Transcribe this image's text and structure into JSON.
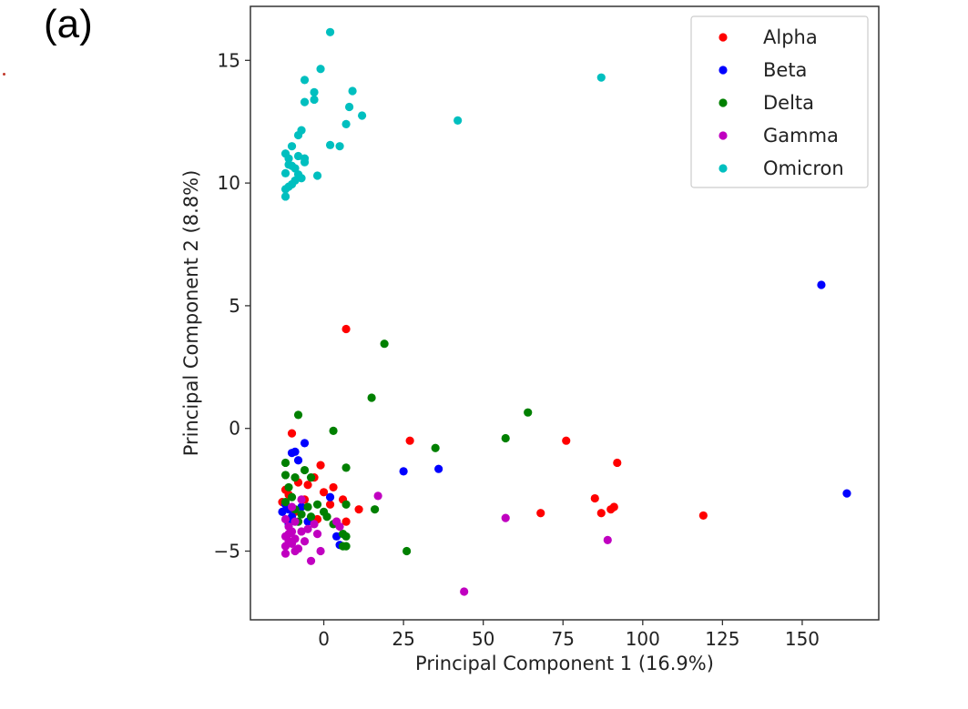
{
  "panel_label": "(a)",
  "chart_data": {
    "type": "scatter",
    "title": "",
    "xlabel": "Principal Component 1 (16.9%)",
    "ylabel": "Principal Component 2 (8.8%)",
    "xlim": [
      -23,
      174
    ],
    "ylim": [
      -7.8,
      17.2
    ],
    "xticks": [
      0,
      25,
      50,
      75,
      100,
      125,
      150
    ],
    "yticks": [
      -5,
      0,
      5,
      10,
      15
    ],
    "grid": false,
    "legend_position": "top-right",
    "series": [
      {
        "name": "Alpha",
        "color": "#ff0000",
        "points": [
          [
            7,
            4.05
          ],
          [
            27,
            -0.5
          ],
          [
            76,
            -0.5
          ],
          [
            92,
            -1.4
          ],
          [
            85,
            -2.85
          ],
          [
            91,
            -3.2
          ],
          [
            90,
            -3.3
          ],
          [
            87,
            -3.45
          ],
          [
            68,
            -3.45
          ],
          [
            119,
            -3.55
          ],
          [
            11,
            -3.3
          ],
          [
            7,
            -3.8
          ],
          [
            0,
            -2.6
          ],
          [
            3,
            -2.4
          ],
          [
            -1,
            -1.5
          ],
          [
            -3,
            -2.0
          ],
          [
            -5,
            -2.3
          ],
          [
            -10,
            -0.2
          ],
          [
            -12,
            -2.5
          ],
          [
            -13,
            -3.0
          ],
          [
            -9,
            -3.4
          ],
          [
            -6,
            -2.9
          ],
          [
            2,
            -3.1
          ],
          [
            -2,
            -3.7
          ],
          [
            4,
            -3.8
          ],
          [
            6,
            -2.9
          ],
          [
            -11,
            -2.7
          ],
          [
            -8,
            -2.2
          ]
        ]
      },
      {
        "name": "Beta",
        "color": "#0000ff",
        "points": [
          [
            156,
            5.85
          ],
          [
            164,
            -2.65
          ],
          [
            25,
            -1.75
          ],
          [
            36,
            -1.65
          ],
          [
            -6,
            -0.6
          ],
          [
            -9,
            -0.95
          ],
          [
            -10,
            -1.0
          ],
          [
            -12,
            -3.1
          ],
          [
            -13,
            -3.4
          ],
          [
            -10,
            -3.6
          ],
          [
            -7,
            -3.2
          ],
          [
            -5,
            -3.8
          ],
          [
            -11,
            -3.9
          ],
          [
            2,
            -2.8
          ],
          [
            5,
            -4.75
          ],
          [
            4,
            -4.4
          ],
          [
            -8,
            -1.3
          ],
          [
            -11,
            -3.3
          ]
        ]
      },
      {
        "name": "Delta",
        "color": "#008000",
        "points": [
          [
            19,
            3.45
          ],
          [
            15,
            1.25
          ],
          [
            64,
            0.65
          ],
          [
            57,
            -0.4
          ],
          [
            35,
            -0.8
          ],
          [
            -8,
            0.55
          ],
          [
            3,
            -0.1
          ],
          [
            26,
            -5.0
          ],
          [
            7,
            -1.6
          ],
          [
            7,
            -3.1
          ],
          [
            -12,
            -1.4
          ],
          [
            -12,
            -1.9
          ],
          [
            -9,
            -2.0
          ],
          [
            -11,
            -2.4
          ],
          [
            -10,
            -2.8
          ],
          [
            -12,
            -3.0
          ],
          [
            -9,
            -3.3
          ],
          [
            -7,
            -3.5
          ],
          [
            -5,
            -3.2
          ],
          [
            -4,
            -3.6
          ],
          [
            0,
            -3.4
          ],
          [
            3,
            -3.9
          ],
          [
            1,
            -3.6
          ],
          [
            16,
            -3.3
          ],
          [
            6,
            -4.3
          ],
          [
            7,
            -4.4
          ],
          [
            6,
            -4.8
          ],
          [
            7,
            -4.8
          ],
          [
            -6,
            -1.7
          ],
          [
            -4,
            -2.0
          ],
          [
            -2,
            -3.1
          ],
          [
            -8,
            -3.8
          ]
        ]
      },
      {
        "name": "Gamma",
        "color": "#c000c0",
        "points": [
          [
            17,
            -2.75
          ],
          [
            57,
            -3.65
          ],
          [
            89,
            -4.55
          ],
          [
            44,
            -6.65
          ],
          [
            -12,
            -3.7
          ],
          [
            -11,
            -4.0
          ],
          [
            -10,
            -4.2
          ],
          [
            -12,
            -4.4
          ],
          [
            -11,
            -4.6
          ],
          [
            -9,
            -4.5
          ],
          [
            -12,
            -4.8
          ],
          [
            -12,
            -5.1
          ],
          [
            -9,
            -5.0
          ],
          [
            -8,
            -4.9
          ],
          [
            -6,
            -4.6
          ],
          [
            -5,
            -4.1
          ],
          [
            -3,
            -3.9
          ],
          [
            -2,
            -4.3
          ],
          [
            -1,
            -5.0
          ],
          [
            -4,
            -5.4
          ],
          [
            4,
            -3.8
          ],
          [
            5,
            -4.0
          ],
          [
            -7,
            -2.9
          ],
          [
            -10,
            -3.2
          ],
          [
            -9,
            -3.8
          ],
          [
            -11,
            -4.3
          ],
          [
            -10,
            -4.7
          ],
          [
            -7,
            -4.2
          ]
        ]
      },
      {
        "name": "Omicron",
        "color": "#00bfbf",
        "points": [
          [
            2,
            16.15
          ],
          [
            87,
            14.3
          ],
          [
            42,
            12.55
          ],
          [
            -1,
            14.65
          ],
          [
            -6,
            14.2
          ],
          [
            -3,
            13.7
          ],
          [
            -3,
            13.4
          ],
          [
            -6,
            13.3
          ],
          [
            9,
            13.75
          ],
          [
            8,
            13.1
          ],
          [
            12,
            12.75
          ],
          [
            7,
            12.4
          ],
          [
            -7,
            12.15
          ],
          [
            -8,
            11.95
          ],
          [
            5,
            11.5
          ],
          [
            2,
            11.55
          ],
          [
            -10,
            11.5
          ],
          [
            -12,
            11.2
          ],
          [
            -11,
            11.0
          ],
          [
            -8,
            11.1
          ],
          [
            -6,
            11.0
          ],
          [
            -10,
            10.7
          ],
          [
            -6,
            10.85
          ],
          [
            -9,
            10.6
          ],
          [
            -12,
            10.4
          ],
          [
            -8,
            10.35
          ],
          [
            -2,
            10.3
          ],
          [
            -9,
            10.1
          ],
          [
            -7,
            10.2
          ],
          [
            -10,
            9.95
          ],
          [
            -11,
            9.85
          ],
          [
            -12,
            9.75
          ],
          [
            -12,
            9.45
          ],
          [
            -11,
            10.75
          ]
        ]
      }
    ]
  }
}
